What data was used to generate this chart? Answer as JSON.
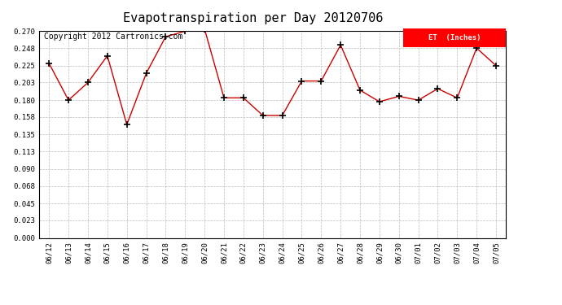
{
  "title": "Evapotranspiration per Day 20120706",
  "copyright": "Copyright 2012 Cartronics.com",
  "legend_label": "ET  (Inches)",
  "legend_bg": "#ff0000",
  "legend_fg": "#ffffff",
  "dates": [
    "06/12",
    "06/13",
    "06/14",
    "06/15",
    "06/16",
    "06/17",
    "06/18",
    "06/19",
    "06/20",
    "06/21",
    "06/22",
    "06/23",
    "06/24",
    "06/25",
    "06/26",
    "06/27",
    "06/28",
    "06/29",
    "06/30",
    "07/01",
    "07/02",
    "07/03",
    "07/04",
    "07/05"
  ],
  "values": [
    0.228,
    0.18,
    0.203,
    0.238,
    0.148,
    0.215,
    0.263,
    0.27,
    0.273,
    0.183,
    0.183,
    0.16,
    0.16,
    0.205,
    0.205,
    0.252,
    0.193,
    0.178,
    0.185,
    0.18,
    0.195,
    0.183,
    0.248,
    0.225
  ],
  "yticks": [
    0.0,
    0.023,
    0.045,
    0.068,
    0.09,
    0.113,
    0.135,
    0.158,
    0.18,
    0.203,
    0.225,
    0.248,
    0.27
  ],
  "ylim": [
    0.0,
    0.27
  ],
  "line_color": "#cc0000",
  "marker": "+",
  "marker_color": "#000000",
  "bg_color": "#ffffff",
  "grid_color": "#bbbbbb",
  "title_fontsize": 11,
  "copyright_fontsize": 7
}
